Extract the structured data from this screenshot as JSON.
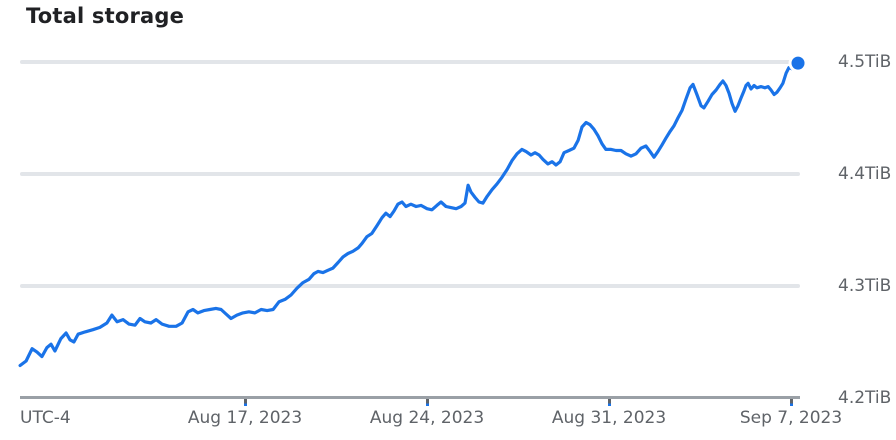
{
  "header": {
    "title": "Total storage"
  },
  "colors": {
    "line": "#1a73e8",
    "end_marker_fill": "#1a73e8",
    "end_marker_ring": "#ffffff",
    "gridline": "#e2e5e9",
    "axis_line": "#9aa0a6",
    "tick": "#5f6368",
    "tick_tip": "#1a73e8",
    "axis_label": "#5f6368",
    "title": "#202124",
    "background": "#ffffff"
  },
  "chart_data": {
    "type": "line",
    "title": "Total storage",
    "legend": "none",
    "grid": "horizontal",
    "x_axis": {
      "timezone_label": "UTC-4",
      "unit": "day index of August 2023 (values past 31 continue into September; 38 = Sep 7, 2023)",
      "range": [
        8.35,
        38.27
      ],
      "ticks": [
        {
          "t": 17,
          "label": "Aug 17, 2023"
        },
        {
          "t": 24,
          "label": "Aug 24, 2023"
        },
        {
          "t": 31,
          "label": "Aug 31, 2023"
        },
        {
          "t": 38,
          "label": "Sep 7, 2023"
        }
      ]
    },
    "y_axis": {
      "unit": "TiB",
      "range": [
        4.2,
        4.5
      ],
      "ticks": [
        {
          "v": 4.5,
          "label": "4.5TiB",
          "gridline": true
        },
        {
          "v": 4.4,
          "label": "4.4TiB",
          "gridline": true
        },
        {
          "v": 4.3,
          "label": "4.3TiB",
          "gridline": true
        },
        {
          "v": 4.2,
          "label": "4.2TiB",
          "gridline": false
        }
      ]
    },
    "series": [
      {
        "name": "Total storage",
        "color": "#1a73e8",
        "end_marker": true,
        "points": [
          [
            8.35,
            4.229
          ],
          [
            8.58,
            4.233
          ],
          [
            8.81,
            4.244
          ],
          [
            9.0,
            4.241
          ],
          [
            9.19,
            4.237
          ],
          [
            9.38,
            4.245
          ],
          [
            9.54,
            4.248
          ],
          [
            9.69,
            4.242
          ],
          [
            9.92,
            4.253
          ],
          [
            10.12,
            4.258
          ],
          [
            10.27,
            4.252
          ],
          [
            10.42,
            4.25
          ],
          [
            10.58,
            4.257
          ],
          [
            10.85,
            4.259
          ],
          [
            11.15,
            4.261
          ],
          [
            11.42,
            4.263
          ],
          [
            11.69,
            4.267
          ],
          [
            11.88,
            4.274
          ],
          [
            12.08,
            4.268
          ],
          [
            12.31,
            4.27
          ],
          [
            12.54,
            4.266
          ],
          [
            12.77,
            4.265
          ],
          [
            12.96,
            4.271
          ],
          [
            13.15,
            4.268
          ],
          [
            13.38,
            4.267
          ],
          [
            13.58,
            4.27
          ],
          [
            13.81,
            4.266
          ],
          [
            14.08,
            4.264
          ],
          [
            14.35,
            4.264
          ],
          [
            14.58,
            4.267
          ],
          [
            14.81,
            4.277
          ],
          [
            15.0,
            4.279
          ],
          [
            15.19,
            4.276
          ],
          [
            15.42,
            4.278
          ],
          [
            15.65,
            4.279
          ],
          [
            15.88,
            4.28
          ],
          [
            16.08,
            4.279
          ],
          [
            16.27,
            4.275
          ],
          [
            16.46,
            4.271
          ],
          [
            16.69,
            4.274
          ],
          [
            16.92,
            4.276
          ],
          [
            17.15,
            4.277
          ],
          [
            17.38,
            4.276
          ],
          [
            17.62,
            4.279
          ],
          [
            17.85,
            4.278
          ],
          [
            18.08,
            4.279
          ],
          [
            18.31,
            4.286
          ],
          [
            18.54,
            4.288
          ],
          [
            18.77,
            4.292
          ],
          [
            19.0,
            4.298
          ],
          [
            19.23,
            4.303
          ],
          [
            19.46,
            4.306
          ],
          [
            19.65,
            4.311
          ],
          [
            19.81,
            4.313
          ],
          [
            20.0,
            4.312
          ],
          [
            20.19,
            4.314
          ],
          [
            20.38,
            4.316
          ],
          [
            20.58,
            4.321
          ],
          [
            20.77,
            4.326
          ],
          [
            20.96,
            4.329
          ],
          [
            21.15,
            4.331
          ],
          [
            21.35,
            4.334
          ],
          [
            21.5,
            4.338
          ],
          [
            21.69,
            4.344
          ],
          [
            21.88,
            4.347
          ],
          [
            22.08,
            4.354
          ],
          [
            22.27,
            4.361
          ],
          [
            22.42,
            4.365
          ],
          [
            22.58,
            4.362
          ],
          [
            22.73,
            4.367
          ],
          [
            22.88,
            4.373
          ],
          [
            23.04,
            4.375
          ],
          [
            23.19,
            4.371
          ],
          [
            23.38,
            4.373
          ],
          [
            23.58,
            4.371
          ],
          [
            23.77,
            4.372
          ],
          [
            24.0,
            4.369
          ],
          [
            24.19,
            4.368
          ],
          [
            24.38,
            4.372
          ],
          [
            24.54,
            4.375
          ],
          [
            24.73,
            4.371
          ],
          [
            24.92,
            4.37
          ],
          [
            25.12,
            4.369
          ],
          [
            25.31,
            4.371
          ],
          [
            25.46,
            4.374
          ],
          [
            25.58,
            4.39
          ],
          [
            25.69,
            4.384
          ],
          [
            25.85,
            4.379
          ],
          [
            26.0,
            4.375
          ],
          [
            26.15,
            4.374
          ],
          [
            26.31,
            4.38
          ],
          [
            26.5,
            4.386
          ],
          [
            26.69,
            4.391
          ],
          [
            26.88,
            4.397
          ],
          [
            27.08,
            4.404
          ],
          [
            27.27,
            4.412
          ],
          [
            27.46,
            4.418
          ],
          [
            27.65,
            4.422
          ],
          [
            27.81,
            4.42
          ],
          [
            28.0,
            4.417
          ],
          [
            28.15,
            4.419
          ],
          [
            28.31,
            4.417
          ],
          [
            28.46,
            4.413
          ],
          [
            28.65,
            4.409
          ],
          [
            28.81,
            4.411
          ],
          [
            28.96,
            4.408
          ],
          [
            29.12,
            4.411
          ],
          [
            29.27,
            4.419
          ],
          [
            29.46,
            4.421
          ],
          [
            29.65,
            4.423
          ],
          [
            29.81,
            4.43
          ],
          [
            29.96,
            4.442
          ],
          [
            30.12,
            4.446
          ],
          [
            30.27,
            4.444
          ],
          [
            30.42,
            4.44
          ],
          [
            30.58,
            4.434
          ],
          [
            30.73,
            4.427
          ],
          [
            30.88,
            4.422
          ],
          [
            31.08,
            4.422
          ],
          [
            31.27,
            4.421
          ],
          [
            31.46,
            4.421
          ],
          [
            31.65,
            4.418
          ],
          [
            31.85,
            4.416
          ],
          [
            32.04,
            4.418
          ],
          [
            32.23,
            4.423
          ],
          [
            32.42,
            4.425
          ],
          [
            32.58,
            4.42
          ],
          [
            32.73,
            4.415
          ],
          [
            32.88,
            4.42
          ],
          [
            33.04,
            4.426
          ],
          [
            33.19,
            4.432
          ],
          [
            33.35,
            4.438
          ],
          [
            33.5,
            4.443
          ],
          [
            33.65,
            4.45
          ],
          [
            33.81,
            4.457
          ],
          [
            33.96,
            4.467
          ],
          [
            34.12,
            4.477
          ],
          [
            34.23,
            4.48
          ],
          [
            34.38,
            4.471
          ],
          [
            34.54,
            4.461
          ],
          [
            34.65,
            4.459
          ],
          [
            34.81,
            4.465
          ],
          [
            34.96,
            4.471
          ],
          [
            35.12,
            4.475
          ],
          [
            35.27,
            4.48
          ],
          [
            35.38,
            4.483
          ],
          [
            35.5,
            4.479
          ],
          [
            35.62,
            4.472
          ],
          [
            35.73,
            4.463
          ],
          [
            35.85,
            4.456
          ],
          [
            35.96,
            4.461
          ],
          [
            36.08,
            4.468
          ],
          [
            36.19,
            4.474
          ],
          [
            36.27,
            4.479
          ],
          [
            36.35,
            4.481
          ],
          [
            36.46,
            4.476
          ],
          [
            36.58,
            4.479
          ],
          [
            36.69,
            4.477
          ],
          [
            36.85,
            4.478
          ],
          [
            37.0,
            4.477
          ],
          [
            37.12,
            4.478
          ],
          [
            37.23,
            4.475
          ],
          [
            37.35,
            4.471
          ],
          [
            37.46,
            4.473
          ],
          [
            37.58,
            4.477
          ],
          [
            37.69,
            4.481
          ],
          [
            37.81,
            4.49
          ],
          [
            37.92,
            4.495
          ],
          [
            38.04,
            4.494
          ],
          [
            38.12,
            4.496
          ],
          [
            38.27,
            4.499
          ]
        ]
      }
    ]
  }
}
